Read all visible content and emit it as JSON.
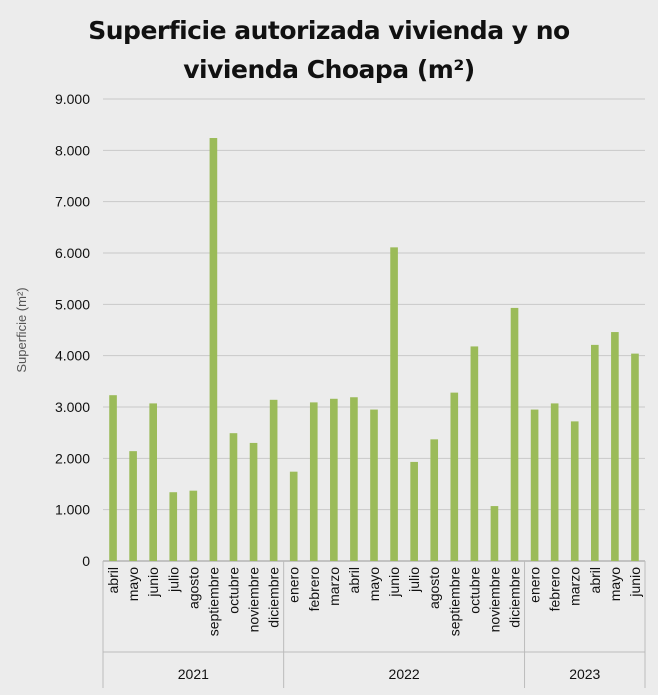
{
  "chart_data": {
    "type": "bar",
    "title_line1": "Superficie autorizada vivienda y no",
    "title_line2": "vivienda Choapa (m²)",
    "ylabel": "Superficie (m²)",
    "ylim": [
      0,
      9000
    ],
    "yticks": [
      {
        "value": 0,
        "label": "0"
      },
      {
        "value": 1000,
        "label": "1.000"
      },
      {
        "value": 2000,
        "label": "2.000"
      },
      {
        "value": 3000,
        "label": "3.000"
      },
      {
        "value": 4000,
        "label": "4.000"
      },
      {
        "value": 5000,
        "label": "5.000"
      },
      {
        "value": 6000,
        "label": "6.000"
      },
      {
        "value": 7000,
        "label": "7.000"
      },
      {
        "value": 8000,
        "label": "8.000"
      },
      {
        "value": 9000,
        "label": "9.000"
      }
    ],
    "grid": true,
    "bar_color": "#9bbb59",
    "categories": [
      "abril",
      "mayo",
      "junio",
      "julio",
      "agosto",
      "septiembre",
      "octubre",
      "noviembre",
      "diciembre",
      "enero",
      "febrero",
      "marzo",
      "abril",
      "mayo",
      "junio",
      "julio",
      "agosto",
      "septiembre",
      "octubre",
      "noviembre",
      "diciembre",
      "enero",
      "febrero",
      "marzo",
      "abril",
      "mayo",
      "junio"
    ],
    "values": [
      3230,
      2140,
      3070,
      1340,
      1370,
      8240,
      2490,
      2300,
      3140,
      1740,
      3090,
      3160,
      3190,
      2950,
      6110,
      1930,
      2370,
      3280,
      4180,
      1070,
      4930,
      2950,
      3070,
      2720,
      4210,
      4460,
      4040
    ],
    "groups": [
      {
        "label": "2021",
        "count": 9
      },
      {
        "label": "2022",
        "count": 12
      },
      {
        "label": "2023",
        "count": 6
      }
    ]
  }
}
